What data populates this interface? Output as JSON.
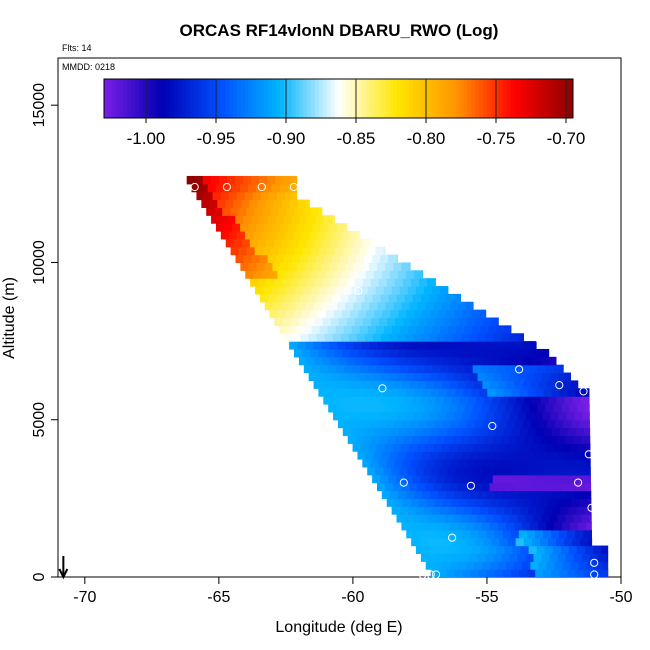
{
  "chart_data": {
    "type": "heatmap",
    "title": "ORCAS RF14vlonN DBARU_RWO (Log)",
    "annotations": [
      "Flts: 14",
      "MMDD: 0218"
    ],
    "xlabel": "Longitude (deg E)",
    "ylabel": "Altitude (m)",
    "xlim": [
      -71,
      -50
    ],
    "ylim": [
      0,
      16500
    ],
    "xticks": [
      -70,
      -65,
      -60,
      -55,
      -50
    ],
    "yticks": [
      0,
      5000,
      10000,
      15000
    ],
    "xtick_labels": [
      "-70",
      "-65",
      "-60",
      "-55",
      "-50"
    ],
    "ytick_labels": [
      "0",
      "5000",
      "10000",
      "15000"
    ],
    "colorbar": {
      "range": [
        -1.03,
        -0.695
      ],
      "ticks": [
        -1.0,
        -0.95,
        -0.9,
        -0.85,
        -0.8,
        -0.75,
        -0.7
      ],
      "tick_labels": [
        "-1.00",
        "-0.95",
        "-0.90",
        "-0.85",
        "-0.80",
        "-0.75",
        "-0.70"
      ],
      "colors": [
        "#7a1fe6",
        "#0000b4",
        "#0050ff",
        "#00b4ff",
        "#ffffff",
        "#ffe600",
        "#ff9600",
        "#ff0000",
        "#8c0000"
      ]
    },
    "marker": {
      "label": "arrow",
      "x": -70.8
    },
    "points": [
      {
        "x": -65.9,
        "y": 12400
      },
      {
        "x": -64.7,
        "y": 12400
      },
      {
        "x": -63.4,
        "y": 12400
      },
      {
        "x": -62.2,
        "y": 12400
      },
      {
        "x": -60.9,
        "y": 11800
      },
      {
        "x": -59.8,
        "y": 9100
      },
      {
        "x": -53.1,
        "y": 7600
      },
      {
        "x": -53.8,
        "y": 6600
      },
      {
        "x": -52.3,
        "y": 6100
      },
      {
        "x": -58.9,
        "y": 6000
      },
      {
        "x": -51.4,
        "y": 5900
      },
      {
        "x": -54.8,
        "y": 4800
      },
      {
        "x": -51.2,
        "y": 3900
      },
      {
        "x": -58.1,
        "y": 3000
      },
      {
        "x": -55.6,
        "y": 2900
      },
      {
        "x": -51.6,
        "y": 3000
      },
      {
        "x": -51.1,
        "y": 2200
      },
      {
        "x": -56.3,
        "y": 1250
      },
      {
        "x": -51.0,
        "y": 450
      },
      {
        "x": -57.4,
        "y": 80
      },
      {
        "x": -57.1,
        "y": 80
      },
      {
        "x": -56.9,
        "y": 80
      },
      {
        "x": -51.0,
        "y": 80
      }
    ]
  }
}
